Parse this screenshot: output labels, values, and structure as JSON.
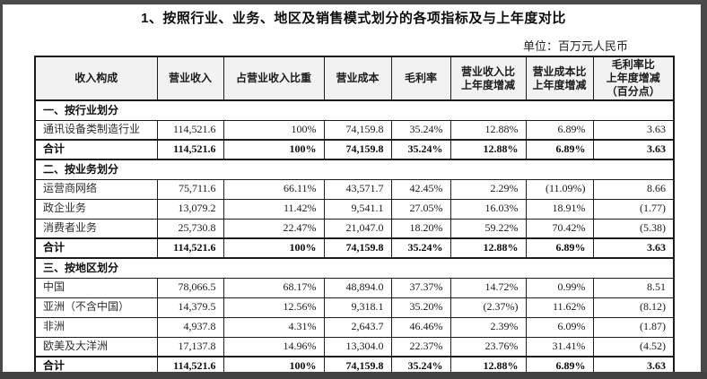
{
  "page": {
    "title": "1、按照行业、业务、地区及销售模式划分的各项指标及与上年度对比",
    "unit_label": "单位：百万元人民币"
  },
  "table": {
    "headers": [
      "收入构成",
      "营业收入",
      "占营业收入比重",
      "营业成本",
      "毛利率",
      "营业收入比\n上年度增减",
      "营业成本比\n上年度增减",
      "毛利率比\n上年度增减\n（百分点）"
    ],
    "rows": [
      {
        "type": "section",
        "label": "一、按行业划分"
      },
      {
        "type": "data",
        "cells": [
          "通讯设备类制造行业",
          "114,521.6",
          "100%",
          "74,159.8",
          "35.24%",
          "12.88%",
          "6.89%",
          "3.63"
        ]
      },
      {
        "type": "total",
        "cells": [
          "合计",
          "114,521.6",
          "100%",
          "74,159.8",
          "35.24%",
          "12.88%",
          "6.89%",
          "3.63"
        ]
      },
      {
        "type": "section",
        "label": "二、按业务划分"
      },
      {
        "type": "data",
        "cells": [
          "运营商网络",
          "75,711.6",
          "66.11%",
          "43,571.7",
          "42.45%",
          "2.29%",
          "(11.09%)",
          "8.66"
        ]
      },
      {
        "type": "data",
        "cells": [
          "政企业务",
          "13,079.2",
          "11.42%",
          "9,541.1",
          "27.05%",
          "16.03%",
          "18.91%",
          "(1.77)"
        ]
      },
      {
        "type": "data",
        "cells": [
          "消费者业务",
          "25,730.8",
          "22.47%",
          "21,047.0",
          "18.20%",
          "59.22%",
          "70.42%",
          "(5.38)"
        ]
      },
      {
        "type": "total",
        "cells": [
          "合计",
          "114,521.6",
          "100%",
          "74,159.8",
          "35.24%",
          "12.88%",
          "6.89%",
          "3.63"
        ]
      },
      {
        "type": "section",
        "label": "三、按地区划分"
      },
      {
        "type": "data",
        "cells": [
          "中国",
          "78,066.5",
          "68.17%",
          "48,894.0",
          "37.37%",
          "14.72%",
          "0.99%",
          "8.51"
        ]
      },
      {
        "type": "data",
        "cells": [
          "亚洲（不含中国）",
          "14,379.5",
          "12.56%",
          "9,318.1",
          "35.20%",
          "(2.37%)",
          "11.62%",
          "(8.12)"
        ]
      },
      {
        "type": "data",
        "cells": [
          "非洲",
          "4,937.8",
          "4.31%",
          "2,643.7",
          "46.46%",
          "2.39%",
          "6.09%",
          "(1.87)"
        ]
      },
      {
        "type": "data",
        "cells": [
          "欧美及大洋洲",
          "17,137.8",
          "14.96%",
          "13,304.0",
          "22.37%",
          "23.76%",
          "31.41%",
          "(4.52)"
        ]
      },
      {
        "type": "total",
        "cells": [
          "合计",
          "114,521.6",
          "100%",
          "74,159.8",
          "35.24%",
          "12.88%",
          "6.89%",
          "3.63"
        ]
      }
    ]
  }
}
